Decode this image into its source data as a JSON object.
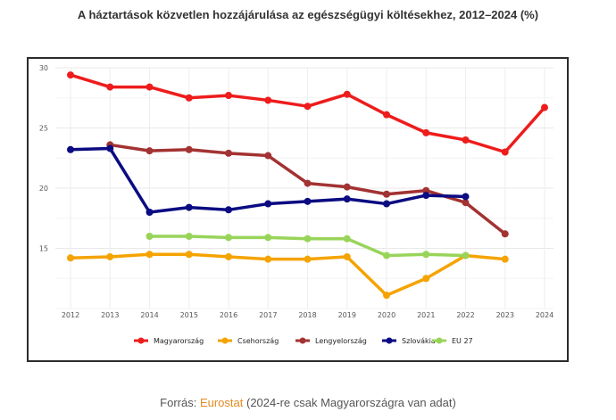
{
  "title": "A háztartások közvetlen hozzájárulása az egészségügyi költésekhez, 2012–2024 (%)",
  "source": {
    "prefix": "Forrás: ",
    "link": "Eurostat",
    "suffix": " (2024-re csak Magyarországra van adat)"
  },
  "chart_data": {
    "type": "line",
    "title": "",
    "xlabel": "",
    "ylabel": "",
    "x": [
      "2012",
      "2013",
      "2014",
      "2015",
      "2016",
      "2017",
      "2018",
      "2019",
      "2020",
      "2021",
      "2022",
      "2023",
      "2024"
    ],
    "ylim": [
      10,
      30
    ],
    "y_ticks": [
      15,
      20,
      25,
      30
    ],
    "grid": true,
    "legend": "bottom",
    "series": [
      {
        "name": "Magyarország",
        "color": "#ee1c1c",
        "values": [
          29.4,
          28.4,
          28.4,
          27.5,
          27.7,
          27.3,
          26.8,
          27.8,
          26.1,
          24.6,
          24.0,
          23.0,
          26.7
        ]
      },
      {
        "name": "Csehország",
        "color": "#f5a300",
        "values": [
          14.2,
          14.3,
          14.5,
          14.5,
          14.3,
          14.1,
          14.1,
          14.3,
          11.1,
          12.5,
          14.4,
          14.1,
          null
        ]
      },
      {
        "name": "Lengyelország",
        "color": "#a33232",
        "values": [
          null,
          23.6,
          23.1,
          23.2,
          22.9,
          22.7,
          20.4,
          20.1,
          19.5,
          19.8,
          18.8,
          16.2,
          null
        ]
      },
      {
        "name": "Szlovákia",
        "color": "#0b0b82",
        "values": [
          23.2,
          23.3,
          18.0,
          18.4,
          18.2,
          18.7,
          18.9,
          19.1,
          18.7,
          19.4,
          19.3,
          null,
          null
        ]
      },
      {
        "name": "EU 27",
        "color": "#98d459",
        "values": [
          null,
          null,
          16.0,
          16.0,
          15.9,
          15.9,
          15.8,
          15.8,
          14.4,
          14.5,
          14.4,
          null,
          null
        ]
      }
    ]
  }
}
